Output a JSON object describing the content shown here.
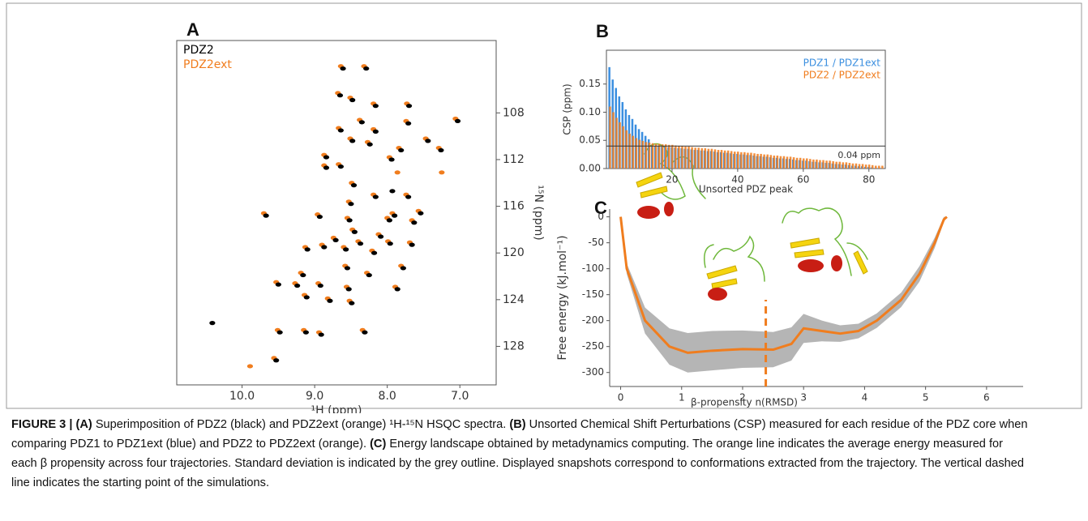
{
  "chart_data": [
    {
      "type": "scatter",
      "panel": "A",
      "xlabel": "¹H (ppm)",
      "ylabel": "¹⁵N (ppm)",
      "xlim": [
        10.9,
        6.5
      ],
      "ylim": [
        131.3,
        101.8
      ],
      "xticks": [
        {
          "value": 10,
          "label": "10.0"
        },
        {
          "value": 9,
          "label": "9.0"
        },
        {
          "value": 8,
          "label": "8.0"
        },
        {
          "value": 7,
          "label": "7.0"
        }
      ],
      "yticks": [
        108,
        112,
        116,
        120,
        124,
        128
      ],
      "yaxis_side": "right",
      "series": [
        {
          "name": "PDZ2ext",
          "color": "#f07d1e",
          "x": [
            8.64,
            8.32,
            8.68,
            8.51,
            8.19,
            7.73,
            8.38,
            7.06,
            8.67,
            8.19,
            7.74,
            8.51,
            8.27,
            7.47,
            8.87,
            7.84,
            7.29,
            8.67,
            7.97,
            8.87,
            8.49,
            8.19,
            7.74,
            8.53,
            8.96,
            7.93,
            7.57,
            8.55,
            8.0,
            8.48,
            7.66,
            9.7,
            8.12,
            8.74,
            8.4,
            7.99,
            7.69,
            9.13,
            8.6,
            8.21,
            8.9,
            7.81,
            9.19,
            8.58,
            8.28,
            9.53,
            9.27,
            8.95,
            8.56,
            7.89,
            9.14,
            8.82,
            8.52,
            9.51,
            9.15,
            8.94,
            8.34,
            9.56,
            9.89,
            7.25,
            7.86
          ],
          "values": [
            104.0,
            104.0,
            106.3,
            106.7,
            107.2,
            107.2,
            108.6,
            108.5,
            109.3,
            109.4,
            108.7,
            110.2,
            110.5,
            110.2,
            111.6,
            111.0,
            111.0,
            112.4,
            111.8,
            112.5,
            114.0,
            115.0,
            115.0,
            115.6,
            116.7,
            116.6,
            116.4,
            117.0,
            117.0,
            118.0,
            117.2,
            116.6,
            118.4,
            118.7,
            119.0,
            119.0,
            119.1,
            119.5,
            119.5,
            119.8,
            119.3,
            121.1,
            121.7,
            121.1,
            121.7,
            122.5,
            122.6,
            122.6,
            122.9,
            122.9,
            123.6,
            123.9,
            124.1,
            126.6,
            126.6,
            126.8,
            126.6,
            129.0,
            129.7,
            113.1,
            113.1
          ]
        },
        {
          "name": "PDZ2",
          "color": "#000000",
          "x": [
            8.61,
            8.29,
            8.65,
            8.48,
            8.16,
            7.7,
            8.35,
            7.03,
            8.64,
            8.16,
            7.71,
            8.48,
            8.24,
            7.44,
            8.84,
            7.81,
            7.26,
            8.64,
            7.94,
            8.84,
            8.46,
            8.16,
            7.71,
            8.5,
            8.93,
            7.9,
            7.54,
            8.52,
            7.97,
            8.45,
            7.63,
            9.67,
            8.09,
            8.71,
            8.37,
            7.96,
            7.66,
            9.1,
            8.57,
            8.18,
            8.87,
            7.78,
            9.16,
            8.55,
            8.25,
            9.5,
            9.24,
            8.92,
            8.53,
            7.86,
            9.11,
            8.79,
            8.49,
            9.48,
            9.12,
            8.91,
            8.31,
            9.53,
            10.41,
            7.93
          ],
          "values": [
            104.2,
            104.2,
            106.5,
            106.9,
            107.4,
            107.4,
            108.8,
            108.7,
            109.5,
            109.6,
            108.9,
            110.4,
            110.7,
            110.4,
            111.8,
            111.2,
            111.2,
            112.6,
            112.0,
            112.7,
            114.2,
            115.2,
            115.2,
            115.8,
            116.9,
            116.8,
            116.6,
            117.2,
            117.2,
            118.2,
            117.4,
            116.8,
            118.6,
            118.9,
            119.2,
            119.2,
            119.3,
            119.7,
            119.7,
            120.0,
            119.5,
            121.3,
            121.9,
            121.3,
            121.9,
            122.7,
            122.8,
            122.8,
            123.1,
            123.1,
            123.8,
            124.1,
            124.3,
            126.8,
            126.8,
            127.0,
            126.8,
            129.2,
            126.0,
            114.7
          ]
        }
      ]
    },
    {
      "type": "bar",
      "panel": "B",
      "xlabel": "Unsorted PDZ peak",
      "ylabel": "CSP (ppm)",
      "xlim": [
        0,
        85
      ],
      "ylim": [
        0,
        0.21
      ],
      "xticks": [
        20,
        40,
        60,
        80
      ],
      "yticks": [
        {
          "value": 0,
          "label": "0.00"
        },
        {
          "value": 0.05,
          "label": "0.05"
        },
        {
          "value": 0.1,
          "label": "0.10"
        },
        {
          "value": 0.15,
          "label": "0.15"
        }
      ],
      "threshold": {
        "value": 0.04,
        "label": "0.04 ppm"
      },
      "legend": "upper right",
      "x": [
        1,
        2,
        3,
        4,
        5,
        6,
        7,
        8,
        9,
        10,
        11,
        12,
        13,
        14,
        15,
        16,
        17,
        18,
        19,
        20,
        21,
        22,
        23,
        24,
        25,
        26,
        27,
        28,
        29,
        30,
        31,
        32,
        33,
        34,
        35,
        36,
        37,
        38,
        39,
        40,
        41,
        42,
        43,
        44,
        45,
        46,
        47,
        48,
        49,
        50,
        51,
        52,
        53,
        54,
        55,
        56,
        57,
        58,
        59,
        60,
        61,
        62,
        63,
        64,
        65,
        66,
        67,
        68,
        69,
        70,
        71,
        72,
        73,
        74,
        75,
        76,
        77,
        78,
        79,
        80,
        81,
        82,
        83,
        84
      ],
      "series": [
        {
          "name": "PDZ1 / PDZ1ext",
          "color": "#3b8fe0",
          "values": [
            0.18,
            0.158,
            0.143,
            0.128,
            0.118,
            0.105,
            0.095,
            0.088,
            0.078,
            0.07,
            0.065,
            0.058,
            0.052,
            0.041,
            0.04,
            0.04,
            0.039,
            0.039,
            0.038,
            0.038,
            0.037,
            0.036,
            0.036,
            0.035,
            0.035,
            0.034,
            0.033,
            0.033,
            0.032,
            0.032,
            0.031,
            0.031,
            0.03,
            0.029,
            0.029,
            0.028,
            0.028,
            0.027,
            0.026,
            0.026,
            0.025,
            0.025,
            0.024,
            0.024,
            0.023,
            0.022,
            0.022,
            0.021,
            0.021,
            0.02,
            0.019,
            0.019,
            0.018,
            0.018,
            0.017,
            0.017,
            0.016,
            0.015,
            0.015,
            0.014,
            0.014,
            0.013,
            0.012,
            0.012,
            0.011,
            0.011,
            0.01,
            0.01,
            0.009,
            0.008,
            0.008,
            0.007,
            0.007,
            0.006,
            0.005,
            0.005,
            0.004,
            0.004,
            0.003,
            0.003,
            0.002,
            0.001,
            0.001,
            0.001
          ]
        },
        {
          "name": "PDZ2 / PDZ2ext",
          "color": "#f07d1e",
          "values": [
            0.11,
            0.1,
            0.09,
            0.082,
            0.075,
            0.068,
            0.062,
            0.058,
            0.054,
            0.051,
            0.049,
            0.047,
            0.046,
            0.045,
            0.044,
            0.044,
            0.043,
            0.043,
            0.042,
            0.042,
            0.041,
            0.04,
            0.04,
            0.039,
            0.039,
            0.038,
            0.037,
            0.037,
            0.036,
            0.036,
            0.035,
            0.035,
            0.034,
            0.033,
            0.033,
            0.032,
            0.032,
            0.031,
            0.03,
            0.03,
            0.029,
            0.029,
            0.028,
            0.028,
            0.027,
            0.026,
            0.026,
            0.025,
            0.025,
            0.024,
            0.023,
            0.023,
            0.022,
            0.022,
            0.021,
            0.021,
            0.02,
            0.019,
            0.019,
            0.018,
            0.018,
            0.017,
            0.016,
            0.016,
            0.015,
            0.015,
            0.014,
            0.014,
            0.013,
            0.012,
            0.012,
            0.011,
            0.011,
            0.01,
            0.009,
            0.009,
            0.008,
            0.008,
            0.007,
            0.007,
            0.006,
            0.005,
            0.005,
            0.005
          ]
        }
      ]
    },
    {
      "type": "line",
      "panel": "C",
      "xlabel": "β-propensity n(RMSD)",
      "ylabel": "Free energy (kJ.mol⁻¹)",
      "xlim": [
        -0.18,
        6.6
      ],
      "ylim": [
        -327,
        15
      ],
      "xticks": [
        0,
        1,
        2,
        3,
        4,
        5,
        6
      ],
      "yticks": [
        0,
        -50,
        -100,
        -150,
        -200,
        -250,
        -300
      ],
      "x": [
        0,
        0.1,
        0.4,
        0.8,
        1.1,
        1.5,
        2,
        2.5,
        2.8,
        3,
        3.3,
        3.6,
        3.9,
        4.2,
        4.6,
        4.9,
        5.15,
        5.3,
        5.35
      ],
      "series": [
        {
          "color": "#f07d1e",
          "band_color": "#b5b5b5",
          "values": [
            0,
            -100,
            -200,
            -250,
            -262,
            -258,
            -255,
            -256,
            -245,
            -215,
            -220,
            -225,
            -220,
            -200,
            -160,
            -110,
            -50,
            -5,
            0
          ],
          "errors": [
            0,
            10,
            25,
            35,
            38,
            38,
            36,
            34,
            32,
            28,
            20,
            16,
            14,
            14,
            14,
            15,
            10,
            5,
            0
          ]
        }
      ],
      "vline": {
        "x": 2.38,
        "top": -160,
        "color": "#f07d1e",
        "dashed": true
      }
    }
  ],
  "caption": {
    "segments": [
      {
        "text": "FIGURE 3 | (A)",
        "bold": true
      },
      {
        "text": " Superimposition of PDZ2 (black) and PDZ2ext (orange) ¹H-¹⁵N HSQC spectra. ",
        "bold": false
      },
      {
        "text": "(B)",
        "bold": true
      },
      {
        "text": " Unsorted Chemical Shift Perturbations (CSP) measured for each residue of the PDZ core when comparing PDZ1 to PDZ1ext (blue) and PDZ2 to PDZ2ext (orange). ",
        "bold": false
      },
      {
        "text": "(C)",
        "bold": true
      },
      {
        "text": " Energy landscape obtained by metadynamics computing. The orange line indicates the average energy measured for each β propensity across four trajectories. Standard deviation is indicated by the grey outline. Displayed snapshots correspond to conformations extracted from the trajectory. The vertical dashed line indicates the starting point of the simulations.",
        "bold": false
      }
    ]
  }
}
